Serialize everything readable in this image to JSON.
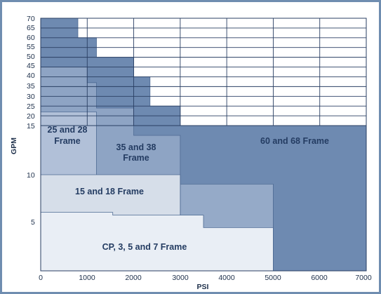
{
  "chart_data": {
    "type": "area",
    "title": "",
    "xlabel": "PSI",
    "ylabel": "GPM",
    "xlim": [
      0,
      7000
    ],
    "x_ticks": [
      "0",
      "1000",
      "2000",
      "3000",
      "4000",
      "5000",
      "6000",
      "7000"
    ],
    "y_ticks": [
      "5",
      "10",
      "15",
      "20",
      "25",
      "30",
      "35",
      "40",
      "45",
      "50",
      "55",
      "60",
      "65",
      "70"
    ],
    "grid": "upper region",
    "colors": {
      "frame_60_68": "#6e8ab1",
      "frame_35_38": "#8ea4c4",
      "frame_25_28": "#b1c0d8",
      "frame_15_18": "#d6dee9",
      "frame_cp": "#e9eef5",
      "step_15_18": "#95aac8"
    },
    "regions": [
      {
        "name": "60 and 68 Frame",
        "label": "60 and 68 Frame",
        "color_key": "frame_60_68",
        "outline": [
          [
            0,
            70
          ],
          [
            800,
            70
          ],
          [
            800,
            60
          ],
          [
            1200,
            60
          ],
          [
            1200,
            50
          ],
          [
            2000,
            50
          ],
          [
            2000,
            40
          ],
          [
            2350,
            40
          ],
          [
            2350,
            25
          ],
          [
            3000,
            25
          ],
          [
            3000,
            15
          ],
          [
            7000,
            15
          ],
          [
            7000,
            0
          ],
          [
            0,
            0
          ]
        ]
      },
      {
        "name": "35 and 38 Frame",
        "label": "35 and 38 Frame",
        "color_key": "frame_35_38",
        "outline": [
          [
            0,
            45
          ],
          [
            1000,
            45
          ],
          [
            1000,
            37
          ],
          [
            1200,
            37
          ],
          [
            1200,
            24
          ],
          [
            2000,
            24
          ],
          [
            2000,
            14
          ],
          [
            3000,
            14
          ],
          [
            3000,
            0
          ],
          [
            0,
            0
          ]
        ]
      },
      {
        "name": "25 and 28 Frame",
        "label": "25 and 28 Frame",
        "color_key": "frame_25_28",
        "outline": [
          [
            0,
            22
          ],
          [
            1200,
            22
          ],
          [
            1200,
            0
          ],
          [
            0,
            0
          ]
        ]
      },
      {
        "name": "15 and 18 Frame step",
        "label": "",
        "color_key": "step_15_18",
        "outline": [
          [
            3000,
            9
          ],
          [
            5000,
            9
          ],
          [
            5000,
            0
          ],
          [
            3000,
            0
          ]
        ]
      },
      {
        "name": "15 and 18 Frame",
        "label": "15 and 18 Frame",
        "color_key": "frame_15_18",
        "outline": [
          [
            0,
            10
          ],
          [
            3000,
            10
          ],
          [
            3000,
            0
          ],
          [
            0,
            0
          ]
        ]
      },
      {
        "name": "CP, 3, 5 and 7 Frame",
        "label": "CP, 3, 5 and 7 Frame",
        "color_key": "frame_cp",
        "outline": [
          [
            0,
            6
          ],
          [
            1550,
            6
          ],
          [
            1550,
            5.7
          ],
          [
            3500,
            5.7
          ],
          [
            3500,
            4.4
          ],
          [
            5000,
            4.4
          ],
          [
            5000,
            0
          ],
          [
            0,
            0
          ]
        ]
      }
    ],
    "labels": {
      "frame_25_28": [
        "25 and 28",
        "Frame"
      ],
      "frame_35_38": [
        "35 and 38",
        "Frame"
      ],
      "frame_60_68": "60 and 68 Frame",
      "frame_15_18": "15 and 18 Frame",
      "frame_cp": "CP, 3, 5 and 7 Frame"
    }
  }
}
